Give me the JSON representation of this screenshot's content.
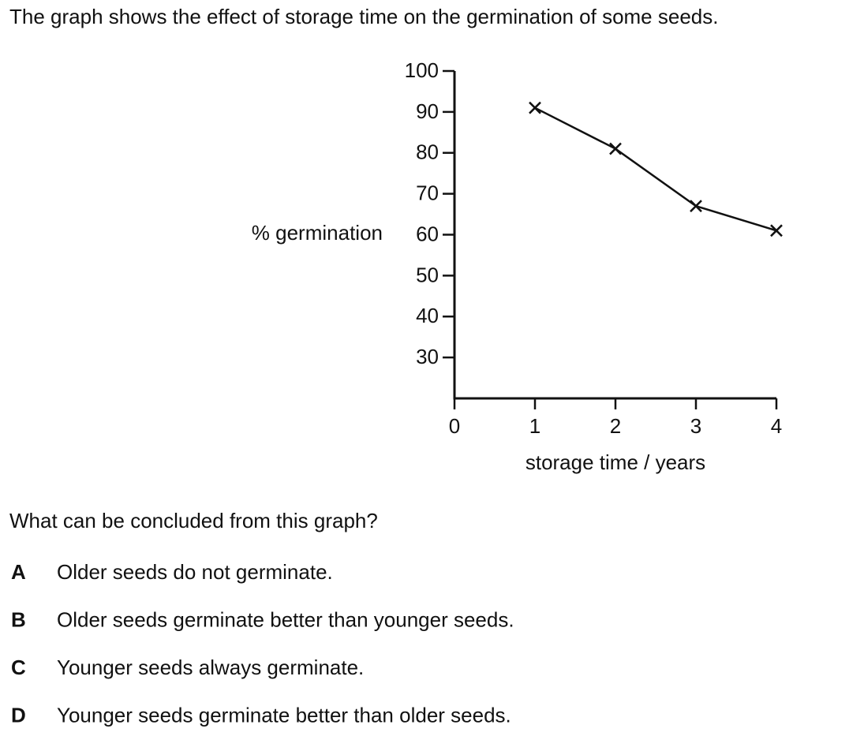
{
  "stem": "The graph shows the effect of storage time on the germination of some seeds.",
  "chart_data": {
    "type": "line",
    "x_label": "storage time / years",
    "y_label": "% germination",
    "x": [
      1,
      2,
      3,
      4
    ],
    "values": [
      91,
      81,
      67,
      61
    ],
    "color": "#111111",
    "xlim": [
      0,
      4
    ],
    "xticks": [
      0,
      1,
      2,
      3,
      4
    ],
    "ylim": [
      20,
      100
    ],
    "yticks": [
      30,
      40,
      50,
      60,
      70,
      80,
      90,
      100
    ]
  },
  "question": "What can be concluded from this graph?",
  "options": [
    {
      "letter": "A",
      "text": "Older seeds do not germinate."
    },
    {
      "letter": "B",
      "text": "Older seeds germinate better than younger seeds."
    },
    {
      "letter": "C",
      "text": "Younger seeds always germinate."
    },
    {
      "letter": "D",
      "text": "Younger seeds germinate better than older seeds."
    }
  ]
}
